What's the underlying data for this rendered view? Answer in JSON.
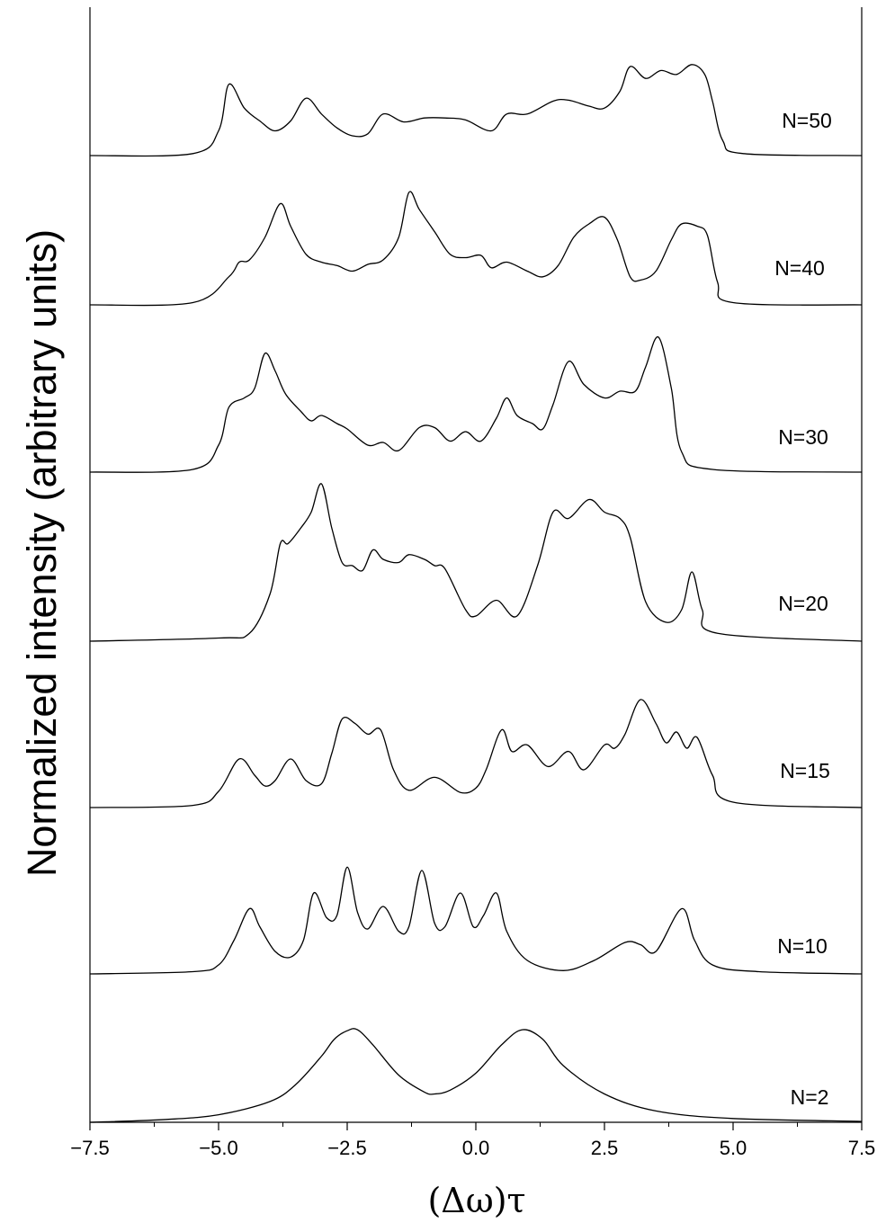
{
  "chart_data": {
    "type": "line",
    "title": "",
    "xlabel": "(Δω)τ",
    "ylabel": "Normalized intensity (arbitrary units)",
    "xlim": [
      -7.5,
      7.5
    ],
    "x_ticks": [
      -7.5,
      -5.0,
      -2.5,
      0.0,
      2.5,
      5.0,
      7.5
    ],
    "x_tick_labels": [
      "−7.5",
      "−5.0",
      "−2.5",
      "0.0",
      "2.5",
      "5.0",
      "7.5"
    ],
    "y_ticks_labeled": false,
    "grid": false,
    "legend": "none",
    "layout": "stacked offset spectra, labeled at right",
    "series": [
      {
        "name": "N=2",
        "points": [
          [
            -7.5,
            0.0
          ],
          [
            -6.0,
            0.03
          ],
          [
            -5.0,
            0.08
          ],
          [
            -4.0,
            0.22
          ],
          [
            -3.5,
            0.4
          ],
          [
            -3.0,
            0.7
          ],
          [
            -2.75,
            0.88
          ],
          [
            -2.5,
            0.97
          ],
          [
            -2.3,
            0.98
          ],
          [
            -2.0,
            0.82
          ],
          [
            -1.5,
            0.5
          ],
          [
            -1.0,
            0.32
          ],
          [
            -0.8,
            0.3
          ],
          [
            -0.5,
            0.34
          ],
          [
            0.0,
            0.52
          ],
          [
            0.5,
            0.82
          ],
          [
            0.9,
            0.98
          ],
          [
            1.3,
            0.88
          ],
          [
            1.7,
            0.6
          ],
          [
            2.5,
            0.3
          ],
          [
            3.5,
            0.12
          ],
          [
            5.0,
            0.04
          ],
          [
            7.5,
            0.01
          ]
        ]
      },
      {
        "name": "N=10",
        "points": [
          [
            -7.5,
            0.0
          ],
          [
            -5.5,
            0.02
          ],
          [
            -5.0,
            0.08
          ],
          [
            -4.7,
            0.3
          ],
          [
            -4.4,
            0.58
          ],
          [
            -4.2,
            0.42
          ],
          [
            -3.9,
            0.2
          ],
          [
            -3.6,
            0.15
          ],
          [
            -3.35,
            0.3
          ],
          [
            -3.15,
            0.72
          ],
          [
            -2.9,
            0.5
          ],
          [
            -2.7,
            0.52
          ],
          [
            -2.5,
            0.95
          ],
          [
            -2.3,
            0.55
          ],
          [
            -2.1,
            0.4
          ],
          [
            -1.8,
            0.6
          ],
          [
            -1.5,
            0.38
          ],
          [
            -1.3,
            0.42
          ],
          [
            -1.05,
            0.92
          ],
          [
            -0.8,
            0.45
          ],
          [
            -0.6,
            0.42
          ],
          [
            -0.3,
            0.72
          ],
          [
            -0.05,
            0.42
          ],
          [
            0.15,
            0.52
          ],
          [
            0.4,
            0.72
          ],
          [
            0.6,
            0.38
          ],
          [
            1.0,
            0.12
          ],
          [
            1.7,
            0.03
          ],
          [
            2.3,
            0.12
          ],
          [
            2.9,
            0.28
          ],
          [
            3.2,
            0.26
          ],
          [
            3.5,
            0.2
          ],
          [
            4.0,
            0.58
          ],
          [
            4.25,
            0.3
          ],
          [
            4.6,
            0.08
          ],
          [
            5.5,
            0.02
          ],
          [
            7.5,
            0.0
          ]
        ]
      },
      {
        "name": "N=15",
        "points": [
          [
            -7.5,
            0.0
          ],
          [
            -5.5,
            0.02
          ],
          [
            -5.0,
            0.15
          ],
          [
            -4.6,
            0.45
          ],
          [
            -4.3,
            0.3
          ],
          [
            -4.1,
            0.2
          ],
          [
            -3.9,
            0.25
          ],
          [
            -3.6,
            0.45
          ],
          [
            -3.3,
            0.25
          ],
          [
            -3.0,
            0.22
          ],
          [
            -2.8,
            0.5
          ],
          [
            -2.6,
            0.82
          ],
          [
            -2.35,
            0.78
          ],
          [
            -2.1,
            0.68
          ],
          [
            -1.85,
            0.72
          ],
          [
            -1.6,
            0.35
          ],
          [
            -1.3,
            0.16
          ],
          [
            -0.8,
            0.28
          ],
          [
            -0.3,
            0.14
          ],
          [
            0.0,
            0.18
          ],
          [
            0.2,
            0.35
          ],
          [
            0.5,
            0.72
          ],
          [
            0.7,
            0.52
          ],
          [
            1.0,
            0.58
          ],
          [
            1.4,
            0.38
          ],
          [
            1.8,
            0.52
          ],
          [
            2.1,
            0.35
          ],
          [
            2.5,
            0.58
          ],
          [
            2.7,
            0.55
          ],
          [
            2.9,
            0.68
          ],
          [
            3.2,
            1.0
          ],
          [
            3.5,
            0.78
          ],
          [
            3.7,
            0.6
          ],
          [
            3.9,
            0.7
          ],
          [
            4.1,
            0.55
          ],
          [
            4.3,
            0.65
          ],
          [
            4.6,
            0.3
          ],
          [
            5.0,
            0.05
          ],
          [
            7.5,
            0.0
          ]
        ]
      },
      {
        "name": "N=20",
        "points": [
          [
            -7.5,
            0.0
          ],
          [
            -5.0,
            0.02
          ],
          [
            -4.4,
            0.05
          ],
          [
            -4.0,
            0.3
          ],
          [
            -3.8,
            0.62
          ],
          [
            -3.65,
            0.62
          ],
          [
            -3.4,
            0.72
          ],
          [
            -3.2,
            0.82
          ],
          [
            -3.0,
            1.0
          ],
          [
            -2.8,
            0.72
          ],
          [
            -2.6,
            0.5
          ],
          [
            -2.4,
            0.48
          ],
          [
            -2.2,
            0.45
          ],
          [
            -2.0,
            0.58
          ],
          [
            -1.8,
            0.52
          ],
          [
            -1.5,
            0.5
          ],
          [
            -1.3,
            0.55
          ],
          [
            -1.0,
            0.52
          ],
          [
            -0.8,
            0.48
          ],
          [
            -0.6,
            0.46
          ],
          [
            -0.2,
            0.2
          ],
          [
            0.0,
            0.16
          ],
          [
            0.4,
            0.26
          ],
          [
            0.8,
            0.16
          ],
          [
            1.2,
            0.48
          ],
          [
            1.5,
            0.82
          ],
          [
            1.8,
            0.78
          ],
          [
            2.2,
            0.9
          ],
          [
            2.5,
            0.82
          ],
          [
            2.8,
            0.78
          ],
          [
            3.0,
            0.66
          ],
          [
            3.3,
            0.25
          ],
          [
            3.7,
            0.12
          ],
          [
            4.0,
            0.2
          ],
          [
            4.2,
            0.44
          ],
          [
            4.4,
            0.2
          ],
          [
            4.7,
            0.05
          ],
          [
            7.5,
            0.0
          ]
        ]
      },
      {
        "name": "N=30",
        "points": [
          [
            -7.5,
            0.0
          ],
          [
            -5.5,
            0.02
          ],
          [
            -5.0,
            0.2
          ],
          [
            -4.8,
            0.48
          ],
          [
            -4.5,
            0.55
          ],
          [
            -4.3,
            0.62
          ],
          [
            -4.1,
            0.88
          ],
          [
            -3.9,
            0.75
          ],
          [
            -3.7,
            0.58
          ],
          [
            -3.4,
            0.45
          ],
          [
            -3.2,
            0.38
          ],
          [
            -3.0,
            0.42
          ],
          [
            -2.7,
            0.36
          ],
          [
            -2.5,
            0.32
          ],
          [
            -2.1,
            0.2
          ],
          [
            -1.8,
            0.22
          ],
          [
            -1.5,
            0.16
          ],
          [
            -1.1,
            0.33
          ],
          [
            -0.8,
            0.33
          ],
          [
            -0.5,
            0.23
          ],
          [
            -0.2,
            0.3
          ],
          [
            0.1,
            0.23
          ],
          [
            0.4,
            0.4
          ],
          [
            0.6,
            0.55
          ],
          [
            0.8,
            0.42
          ],
          [
            1.1,
            0.36
          ],
          [
            1.3,
            0.32
          ],
          [
            1.5,
            0.5
          ],
          [
            1.8,
            0.82
          ],
          [
            2.1,
            0.65
          ],
          [
            2.5,
            0.55
          ],
          [
            2.8,
            0.6
          ],
          [
            3.1,
            0.6
          ],
          [
            3.3,
            0.78
          ],
          [
            3.55,
            1.0
          ],
          [
            3.8,
            0.62
          ],
          [
            4.0,
            0.15
          ],
          [
            4.6,
            0.02
          ],
          [
            7.5,
            0.0
          ]
        ]
      },
      {
        "name": "N=40",
        "points": [
          [
            -7.5,
            0.0
          ],
          [
            -5.5,
            0.02
          ],
          [
            -4.8,
            0.25
          ],
          [
            -4.6,
            0.38
          ],
          [
            -4.4,
            0.4
          ],
          [
            -4.1,
            0.6
          ],
          [
            -3.8,
            0.9
          ],
          [
            -3.6,
            0.7
          ],
          [
            -3.3,
            0.45
          ],
          [
            -3.0,
            0.38
          ],
          [
            -2.7,
            0.35
          ],
          [
            -2.4,
            0.3
          ],
          [
            -2.1,
            0.36
          ],
          [
            -1.8,
            0.4
          ],
          [
            -1.5,
            0.6
          ],
          [
            -1.3,
            1.0
          ],
          [
            -1.1,
            0.85
          ],
          [
            -0.8,
            0.65
          ],
          [
            -0.5,
            0.45
          ],
          [
            -0.2,
            0.42
          ],
          [
            0.1,
            0.44
          ],
          [
            0.3,
            0.33
          ],
          [
            0.6,
            0.38
          ],
          [
            1.0,
            0.3
          ],
          [
            1.3,
            0.25
          ],
          [
            1.6,
            0.35
          ],
          [
            1.9,
            0.6
          ],
          [
            2.2,
            0.72
          ],
          [
            2.5,
            0.78
          ],
          [
            2.75,
            0.58
          ],
          [
            3.0,
            0.25
          ],
          [
            3.2,
            0.22
          ],
          [
            3.5,
            0.3
          ],
          [
            3.8,
            0.58
          ],
          [
            4.0,
            0.72
          ],
          [
            4.3,
            0.7
          ],
          [
            4.5,
            0.62
          ],
          [
            4.7,
            0.2
          ],
          [
            5.0,
            0.02
          ],
          [
            7.5,
            0.0
          ]
        ]
      },
      {
        "name": "N=50",
        "points": [
          [
            -7.5,
            0.0
          ],
          [
            -5.5,
            0.02
          ],
          [
            -5.0,
            0.25
          ],
          [
            -4.8,
            0.72
          ],
          [
            -4.5,
            0.48
          ],
          [
            -4.2,
            0.35
          ],
          [
            -3.9,
            0.25
          ],
          [
            -3.6,
            0.35
          ],
          [
            -3.3,
            0.58
          ],
          [
            -3.0,
            0.42
          ],
          [
            -2.7,
            0.28
          ],
          [
            -2.4,
            0.2
          ],
          [
            -2.1,
            0.22
          ],
          [
            -1.8,
            0.42
          ],
          [
            -1.4,
            0.34
          ],
          [
            -1.0,
            0.38
          ],
          [
            -0.6,
            0.38
          ],
          [
            -0.2,
            0.36
          ],
          [
            0.3,
            0.25
          ],
          [
            0.6,
            0.42
          ],
          [
            1.0,
            0.42
          ],
          [
            1.5,
            0.55
          ],
          [
            1.8,
            0.56
          ],
          [
            2.2,
            0.5
          ],
          [
            2.5,
            0.48
          ],
          [
            2.8,
            0.65
          ],
          [
            3.0,
            0.9
          ],
          [
            3.3,
            0.78
          ],
          [
            3.6,
            0.86
          ],
          [
            3.9,
            0.82
          ],
          [
            4.2,
            0.92
          ],
          [
            4.45,
            0.82
          ],
          [
            4.6,
            0.55
          ],
          [
            4.8,
            0.15
          ],
          [
            5.2,
            0.02
          ],
          [
            7.5,
            0.0
          ]
        ]
      }
    ]
  }
}
